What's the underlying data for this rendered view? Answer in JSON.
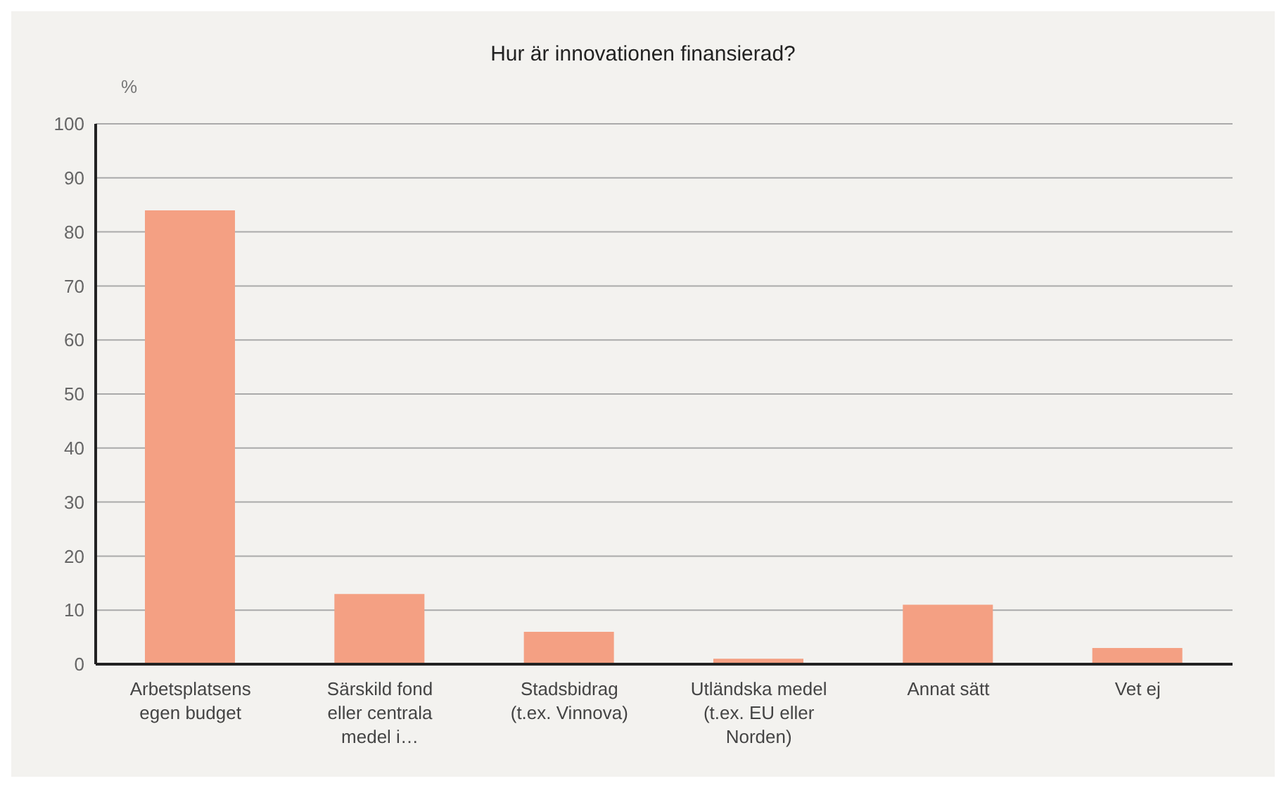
{
  "chart_data": {
    "type": "bar",
    "title": "Hur är innovationen finansierad?",
    "ylabel": "%",
    "categories": [
      "Arbetsplatsens egen budget",
      "Särskild fond eller centrala medel i…",
      "Stadsbidrag (t.ex. Vinnova)",
      "Utländska medel (t.ex. EU eller Norden)",
      "Annat sätt",
      "Vet ej"
    ],
    "values": [
      84,
      13,
      6,
      1,
      11,
      3
    ],
    "color": "#f4a083",
    "ylim": [
      0,
      100
    ],
    "yticks": [
      0,
      10,
      20,
      30,
      40,
      50,
      60,
      70,
      80,
      90,
      100
    ],
    "grid": "y"
  }
}
